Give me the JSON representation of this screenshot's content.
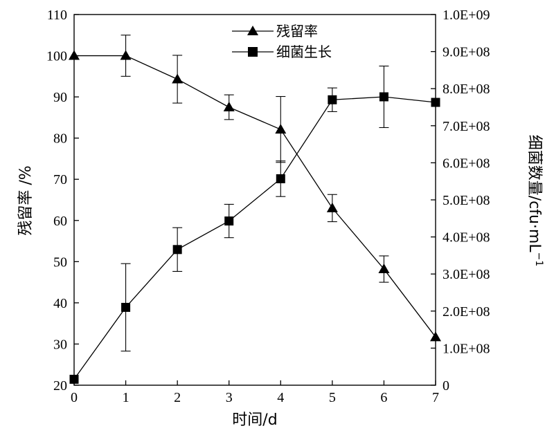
{
  "chart_data": {
    "type": "line",
    "x_label": "时间/d",
    "y_left_label": "残留率 /%",
    "y_right_label": "细菌数量/cfu·mL",
    "y_right_label_sup": "−1",
    "x_ticks": [
      "0",
      "1",
      "2",
      "3",
      "4",
      "5",
      "6",
      "7"
    ],
    "y_left_ticks": [
      "20",
      "30",
      "40",
      "50",
      "60",
      "70",
      "80",
      "90",
      "100",
      "110"
    ],
    "y_right_ticks": [
      "0",
      "1.0E+08",
      "2.0E+08",
      "3.0E+08",
      "4.0E+08",
      "5.0E+08",
      "6.0E+08",
      "7.0E+08",
      "8.0E+08",
      "9.0E+08",
      "1.0E+09"
    ],
    "x_range": [
      0,
      7
    ],
    "y_left_range": [
      20,
      110
    ],
    "y_right_range": [
      0,
      1000000000
    ],
    "grid": false,
    "legend_position": "top-center",
    "series": [
      {
        "name": "残留率",
        "axis": "left",
        "marker": "triangle",
        "x": [
          0,
          1,
          2,
          3,
          4,
          5,
          6,
          7
        ],
        "values": [
          100,
          100,
          94.3,
          87.5,
          82.1,
          63,
          48.2,
          31.7
        ],
        "error": [
          0,
          5,
          5.8,
          3,
          8,
          3.3,
          3.2,
          0
        ]
      },
      {
        "name": "细菌生长",
        "axis": "right",
        "marker": "square",
        "x": [
          0,
          1,
          2,
          3,
          4,
          5,
          6,
          7
        ],
        "values": [
          16000000,
          210000000,
          366000000,
          443000000,
          557000000,
          770000000,
          778000000,
          763000000
        ],
        "error": [
          0,
          118000000,
          59000000,
          45000000,
          48000000,
          32000000,
          83000000,
          0
        ]
      }
    ]
  }
}
